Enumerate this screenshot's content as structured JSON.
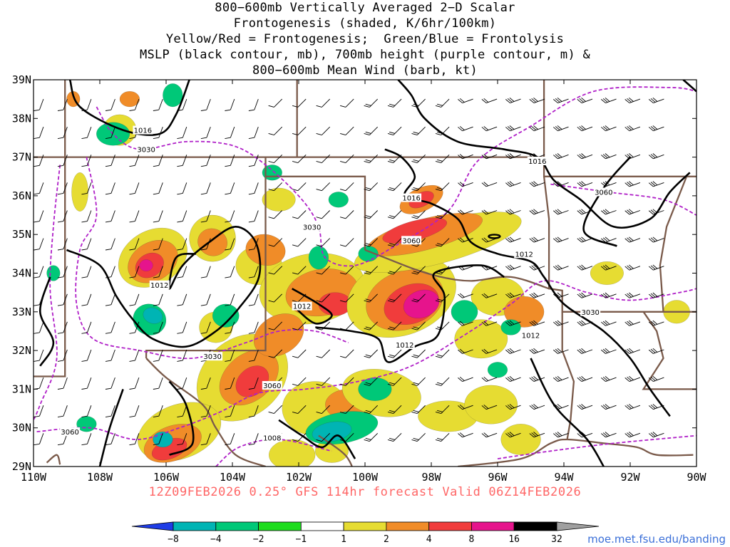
{
  "title_lines": [
    "800−600mb Vertically Averaged 2−D Scalar",
    "Frontogenesis (shaded, K/6hr/100km)",
    "Yellow/Red = Frontogenesis;  Green/Blue = Frontolysis",
    "MSLP (black contour, mb), 700mb height (purple contour, m) &",
    "800−600mb Mean Wind (barb, kt)"
  ],
  "map": {
    "lat_labels": [
      "39N",
      "38N",
      "37N",
      "36N",
      "35N",
      "34N",
      "33N",
      "32N",
      "31N",
      "30N",
      "29N"
    ],
    "lon_labels": [
      "110W",
      "108W",
      "106W",
      "104W",
      "102W",
      "100W",
      "98W",
      "96W",
      "94W",
      "92W",
      "90W"
    ],
    "lat_range": [
      29,
      39
    ],
    "lon_range": [
      -110,
      -90
    ],
    "mslp_contour_labels": [
      {
        "text": "1016",
        "lon": -106.7,
        "lat": 37.7
      },
      {
        "text": "1016",
        "lon": -98.6,
        "lat": 35.95
      },
      {
        "text": "1016",
        "lon": -94.8,
        "lat": 36.9
      },
      {
        "text": "1012",
        "lon": -106.2,
        "lat": 33.7
      },
      {
        "text": "1012",
        "lon": -101.9,
        "lat": 33.15
      },
      {
        "text": "1012",
        "lon": -98.8,
        "lat": 32.15
      },
      {
        "text": "1012",
        "lon": -95.2,
        "lat": 34.5
      },
      {
        "text": "1012",
        "lon": -95.0,
        "lat": 32.4
      },
      {
        "text": "1008",
        "lon": -102.8,
        "lat": 29.75
      }
    ],
    "height_contour_labels": [
      {
        "text": "3030",
        "lon": -106.6,
        "lat": 37.2
      },
      {
        "text": "3030",
        "lon": -101.6,
        "lat": 35.2
      },
      {
        "text": "3030",
        "lon": -104.6,
        "lat": 31.85
      },
      {
        "text": "3030",
        "lon": -93.2,
        "lat": 33.0
      },
      {
        "text": "3060",
        "lon": -98.6,
        "lat": 34.85
      },
      {
        "text": "3060",
        "lon": -92.8,
        "lat": 36.1
      },
      {
        "text": "3060",
        "lon": -102.8,
        "lat": 31.1
      },
      {
        "text": "3060",
        "lon": -108.9,
        "lat": 29.9
      }
    ],
    "colors": {
      "state_border": "#7a5a4a",
      "mslp": "#000000",
      "height": "#b020c8",
      "barb": "#000000"
    }
  },
  "valid_line": "12Z09FEB2026 0.25° GFS 114hr forecast Valid 06Z14FEB2026",
  "colorbar": {
    "labels": [
      "−8",
      "−4",
      "−2",
      "−1",
      "1",
      "2",
      "4",
      "8",
      "16",
      "32"
    ],
    "colors": [
      "#1e3ce6",
      "#00b4b4",
      "#00c878",
      "#1edc1e",
      "#ffffff",
      "#e6dc32",
      "#f08c28",
      "#f03c3c",
      "#e6148c",
      "#000000",
      "#a0a0a0"
    ]
  },
  "credit": "moe.met.fsu.edu/banding"
}
